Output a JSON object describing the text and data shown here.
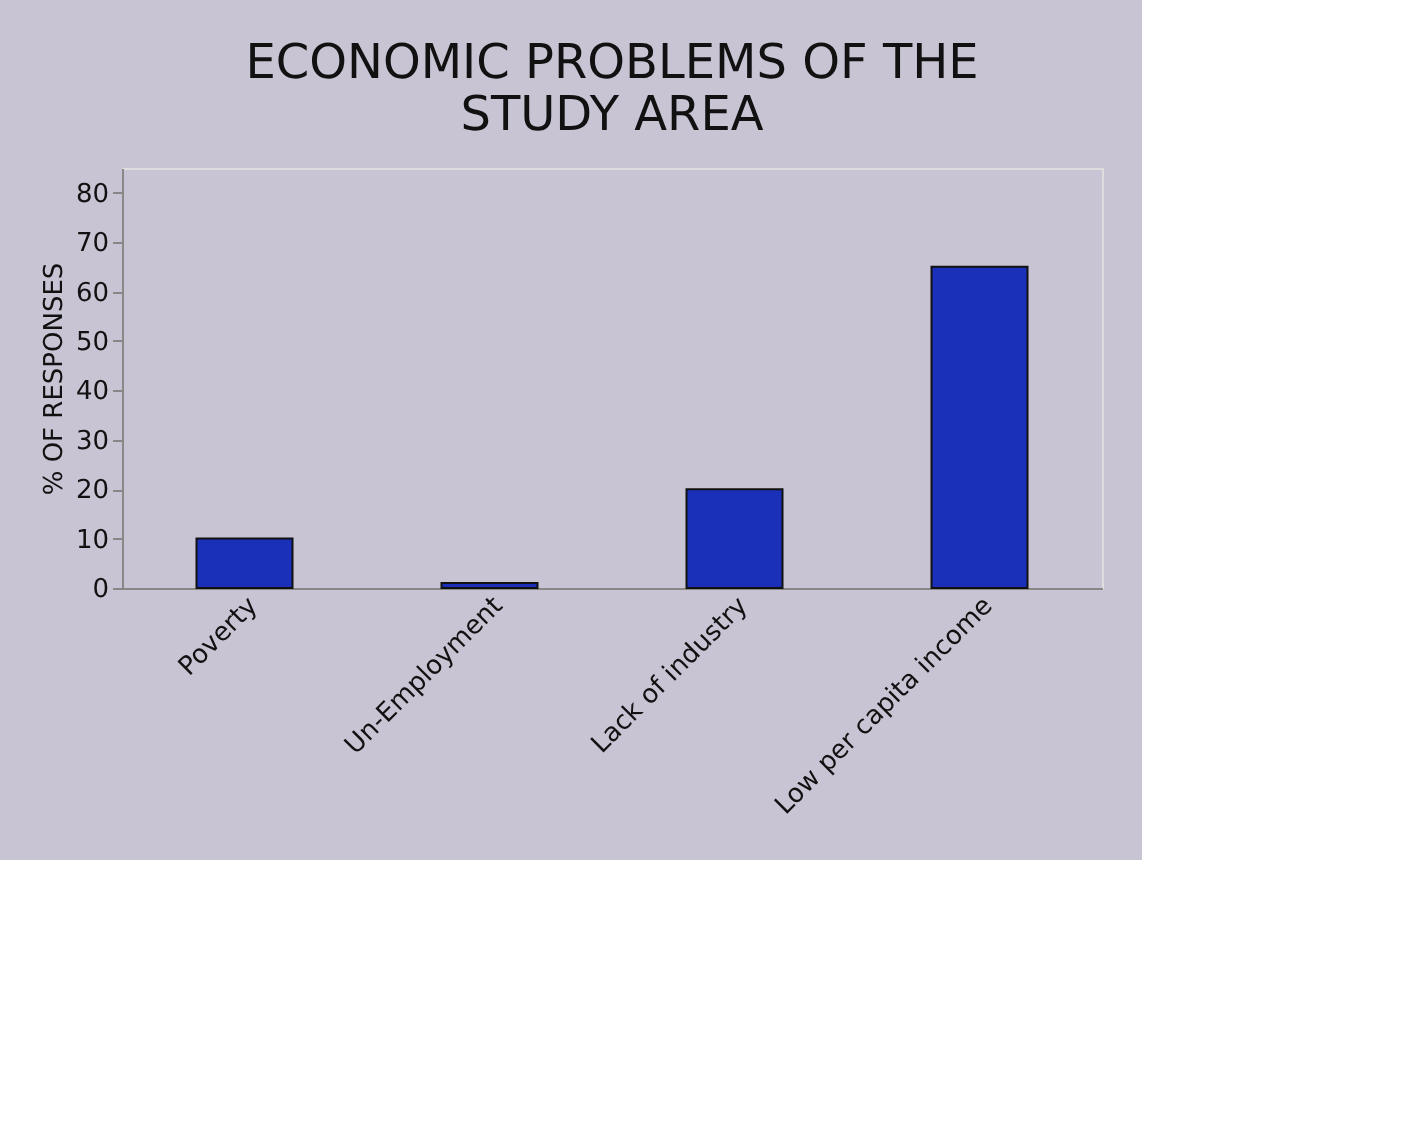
{
  "chart_data": {
    "type": "bar",
    "title": [
      "ECONOMIC PROBLEMS OF THE",
      "STUDY AREA"
    ],
    "ylabel": "% OF RESPONSES",
    "categories": [
      "Poverty",
      "Un-Employment",
      "Lack of industry",
      "Low per capita income"
    ],
    "values": [
      10,
      1,
      20,
      65
    ],
    "color": "#1a30b8",
    "ylim": [
      0,
      85
    ],
    "yticks": [
      0,
      10,
      20,
      30,
      40,
      50,
      60,
      70,
      80
    ],
    "grid": false
  }
}
